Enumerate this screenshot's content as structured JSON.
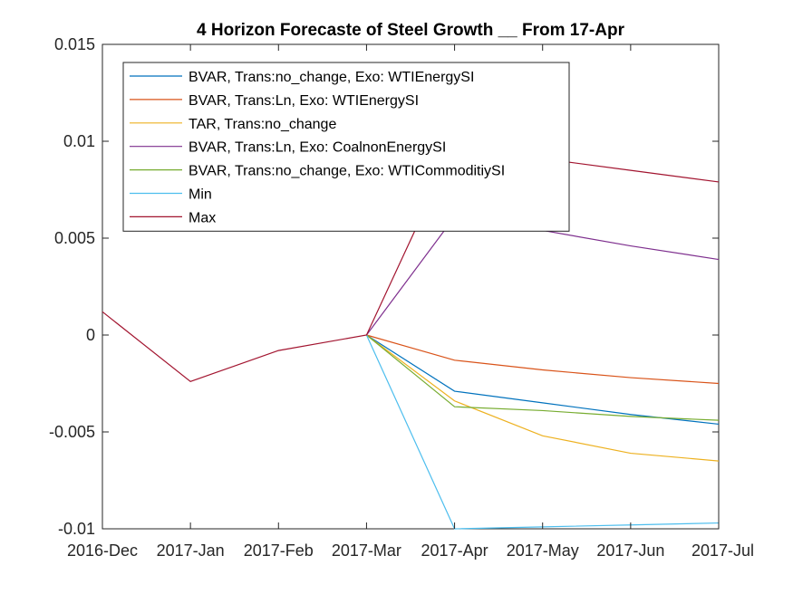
{
  "chart_data": {
    "type": "line",
    "title": "4 Horizon Forecaste of Steel Growth __ From 17-Apr",
    "xlabel": "",
    "ylabel": "",
    "categories": [
      "2016-Dec",
      "2017-Jan",
      "2017-Feb",
      "2017-Mar",
      "2017-Apr",
      "2017-May",
      "2017-Jun",
      "2017-Jul"
    ],
    "ylim": [
      -0.01,
      0.015
    ],
    "yticks": [
      -0.01,
      -0.005,
      0,
      0.005,
      0.01,
      0.015
    ],
    "ytick_labels": [
      "-0.01",
      "-0.005",
      "0",
      "0.005",
      "0.01",
      "0.015"
    ],
    "grid": false,
    "legend_position": "top-left",
    "series": [
      {
        "name": "BVAR, Trans:no_change, Exo: WTIEnergySI",
        "color": "#0072BD",
        "values": [
          null,
          null,
          null,
          0.0,
          -0.0029,
          -0.0035,
          -0.0041,
          -0.0046
        ]
      },
      {
        "name": "BVAR, Trans:Ln, Exo: WTIEnergySI",
        "color": "#D95319",
        "values": [
          null,
          null,
          null,
          0.0,
          -0.0013,
          -0.0018,
          -0.0022,
          -0.0025
        ]
      },
      {
        "name": "TAR, Trans:no_change",
        "color": "#EDB120",
        "values": [
          null,
          null,
          null,
          0.0,
          -0.0034,
          -0.0052,
          -0.0061,
          -0.0065
        ]
      },
      {
        "name": "BVAR, Trans:Ln, Exo: CoalnonEnergySI",
        "color": "#7E2F8E",
        "values": [
          null,
          null,
          null,
          0.0,
          0.0061,
          0.0054,
          0.0046,
          0.0039
        ]
      },
      {
        "name": "BVAR, Trans:no_change, Exo: WTICommoditiySI",
        "color": "#77AC30",
        "values": [
          null,
          null,
          null,
          0.0,
          -0.0037,
          -0.0039,
          -0.0042,
          -0.0044
        ]
      },
      {
        "name": "Min",
        "color": "#4DBEEE",
        "values": [
          null,
          null,
          null,
          0.0,
          -0.01,
          -0.0099,
          -0.0098,
          -0.0097
        ]
      },
      {
        "name": "Max",
        "color": "#A2142F",
        "values": [
          0.0012,
          -0.0024,
          -0.0008,
          0.0,
          0.0098,
          0.0091,
          0.0085,
          0.0079
        ]
      }
    ]
  }
}
